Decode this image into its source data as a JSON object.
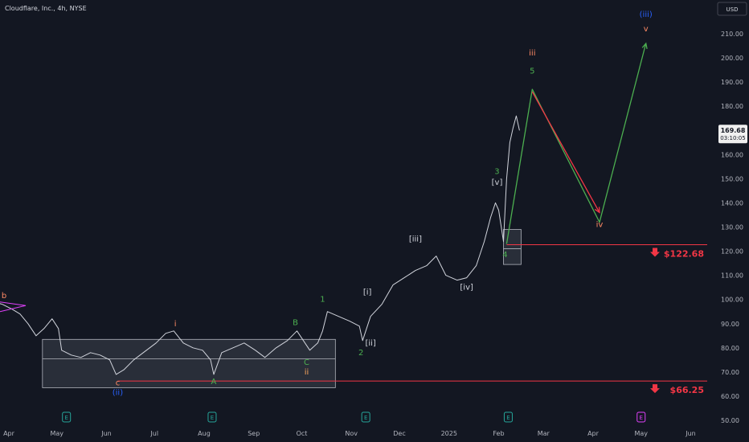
{
  "header": {
    "title": "Cloudflare, Inc., 4h, NYSE",
    "currency": "USD"
  },
  "chart_data": {
    "type": "line",
    "grid": false,
    "ylim": [
      50,
      220
    ],
    "y_ticks": [
      50,
      60,
      70,
      80,
      90,
      100,
      110,
      120,
      130,
      140,
      150,
      160,
      170,
      180,
      190,
      200,
      210
    ],
    "x_ticks": [
      {
        "label": "Apr",
        "x": "2024-04-01"
      },
      {
        "label": "May",
        "x": "2024-05-01"
      },
      {
        "label": "Jun",
        "x": "2024-06-01"
      },
      {
        "label": "Jul",
        "x": "2024-07-01"
      },
      {
        "label": "Aug",
        "x": "2024-08-01"
      },
      {
        "label": "Sep",
        "x": "2024-09-01"
      },
      {
        "label": "Oct",
        "x": "2024-10-01"
      },
      {
        "label": "Nov",
        "x": "2024-11-01"
      },
      {
        "label": "Dec",
        "x": "2024-12-01"
      },
      {
        "label": "2025",
        "x": "2025-01-01"
      },
      {
        "label": "Feb",
        "x": "2025-02-01"
      },
      {
        "label": "Mar",
        "x": "2025-03-01"
      },
      {
        "label": "Apr",
        "x": "2025-04-01"
      },
      {
        "label": "May",
        "x": "2025-05-01"
      },
      {
        "label": "Jun",
        "x": "2025-06-01"
      }
    ],
    "series": [
      {
        "color": "#d1d4dc",
        "points": [
          [
            "2024-03-23",
            99
          ],
          [
            "2024-03-28",
            98
          ],
          [
            "2024-04-03",
            96
          ],
          [
            "2024-04-08",
            94
          ],
          [
            "2024-04-13",
            90
          ],
          [
            "2024-04-18",
            85
          ],
          [
            "2024-04-23",
            88
          ],
          [
            "2024-04-28",
            92
          ],
          [
            "2024-05-02",
            88
          ],
          [
            "2024-05-04",
            79
          ],
          [
            "2024-05-10",
            77
          ],
          [
            "2024-05-16",
            76
          ],
          [
            "2024-05-22",
            78
          ],
          [
            "2024-05-28",
            77
          ],
          [
            "2024-06-03",
            75
          ],
          [
            "2024-06-07",
            69
          ],
          [
            "2024-06-12",
            71
          ],
          [
            "2024-06-18",
            75
          ],
          [
            "2024-06-24",
            78
          ],
          [
            "2024-07-02",
            82
          ],
          [
            "2024-07-08",
            86
          ],
          [
            "2024-07-13",
            87
          ],
          [
            "2024-07-19",
            82
          ],
          [
            "2024-07-25",
            80
          ],
          [
            "2024-07-31",
            79
          ],
          [
            "2024-08-05",
            75
          ],
          [
            "2024-08-07",
            69
          ],
          [
            "2024-08-12",
            78
          ],
          [
            "2024-08-19",
            80
          ],
          [
            "2024-08-26",
            82
          ],
          [
            "2024-09-02",
            79
          ],
          [
            "2024-09-08",
            76
          ],
          [
            "2024-09-15",
            80
          ],
          [
            "2024-09-22",
            83
          ],
          [
            "2024-09-28",
            87
          ],
          [
            "2024-10-02",
            83
          ],
          [
            "2024-10-06",
            79
          ],
          [
            "2024-10-11",
            82
          ],
          [
            "2024-10-14",
            87
          ],
          [
            "2024-10-17",
            95
          ],
          [
            "2024-10-24",
            93
          ],
          [
            "2024-10-31",
            91
          ],
          [
            "2024-11-06",
            89
          ],
          [
            "2024-11-08",
            83
          ],
          [
            "2024-11-13",
            93
          ],
          [
            "2024-11-20",
            98
          ],
          [
            "2024-11-27",
            106
          ],
          [
            "2024-12-04",
            109
          ],
          [
            "2024-12-11",
            112
          ],
          [
            "2024-12-18",
            114
          ],
          [
            "2024-12-24",
            118
          ],
          [
            "2024-12-30",
            110
          ],
          [
            "2025-01-06",
            108
          ],
          [
            "2025-01-12",
            109
          ],
          [
            "2025-01-18",
            114
          ],
          [
            "2025-01-23",
            124
          ],
          [
            "2025-01-27",
            134
          ],
          [
            "2025-01-30",
            140
          ],
          [
            "2025-02-01",
            137
          ],
          [
            "2025-02-04",
            124
          ],
          [
            "2025-02-06",
            150
          ],
          [
            "2025-02-08",
            165
          ],
          [
            "2025-02-10",
            171
          ],
          [
            "2025-02-12",
            176
          ],
          [
            "2025-02-14",
            170
          ]
        ]
      },
      {
        "color": "#4caf50",
        "points": [
          [
            "2025-02-06",
            123
          ],
          [
            "2025-02-22",
            187
          ],
          [
            "2025-04-05",
            132
          ],
          [
            "2025-05-04",
            206
          ]
        ]
      },
      {
        "color": "#f23645",
        "points": [
          [
            "2025-02-22",
            186
          ],
          [
            "2025-04-05",
            136
          ]
        ]
      }
    ],
    "annotations": [
      {
        "text": "b",
        "x": "2024-03-29",
        "y": 100.5,
        "color": "#ff8a65"
      },
      {
        "text": "i",
        "x": "2024-07-14",
        "y": 89,
        "color": "#ff8a65"
      },
      {
        "text": "B",
        "x": "2024-09-27",
        "y": 89.5,
        "color": "#4caf50"
      },
      {
        "text": "1",
        "x": "2024-10-14",
        "y": 99,
        "color": "#4caf50"
      },
      {
        "text": "[i]",
        "x": "2024-11-11",
        "y": 102,
        "color": "#d1d4dc"
      },
      {
        "text": "[iii]",
        "x": "2024-12-11",
        "y": 124,
        "color": "#d1d4dc"
      },
      {
        "text": "[iv]",
        "x": "2025-01-12",
        "y": 104,
        "color": "#d1d4dc"
      },
      {
        "text": "[ii]",
        "x": "2024-11-13",
        "y": 81,
        "color": "#d1d4dc"
      },
      {
        "text": "2",
        "x": "2024-11-07",
        "y": 77,
        "color": "#4caf50"
      },
      {
        "text": "C",
        "x": "2024-10-04",
        "y": 73,
        "color": "#4caf50"
      },
      {
        "text": "ii",
        "x": "2024-10-04",
        "y": 69,
        "color": "#f7a35c"
      },
      {
        "text": "c",
        "x": "2024-06-08",
        "y": 64.5,
        "color": "#ff8a65"
      },
      {
        "text": "A",
        "x": "2024-08-07",
        "y": 65,
        "color": "#4caf50"
      },
      {
        "text": "(ii)",
        "x": "2024-06-08",
        "y": 60.5,
        "color": "#2962ff"
      },
      {
        "text": "3",
        "x": "2025-01-31",
        "y": 152,
        "color": "#4caf50"
      },
      {
        "text": "[v]",
        "x": "2025-01-31",
        "y": 147.5,
        "color": "#d1d4dc"
      },
      {
        "text": "4",
        "x": "2025-02-05",
        "y": 117.5,
        "color": "#4caf50"
      },
      {
        "text": "iii",
        "x": "2025-02-22",
        "y": 201,
        "color": "#ff8a65"
      },
      {
        "text": "5",
        "x": "2025-02-22",
        "y": 193.5,
        "color": "#4caf50"
      },
      {
        "text": "iv",
        "x": "2025-04-05",
        "y": 130,
        "color": "#ff8a65"
      },
      {
        "text": "(iii)",
        "x": "2025-05-04",
        "y": 217,
        "color": "#2962ff"
      },
      {
        "text": "v",
        "x": "2025-05-04",
        "y": 211,
        "color": "#ff8a65"
      }
    ],
    "horizontal_levels": [
      {
        "label": "$122.68",
        "y": 122.68,
        "x_from": "2025-02-06",
        "color": "#f23645"
      },
      {
        "label": "$66.25",
        "y": 66.25,
        "x_from": "2024-06-08",
        "color": "#f23645"
      }
    ],
    "boxes": [
      {
        "x": [
          "2024-04-22",
          "2024-10-22"
        ],
        "y": [
          63.5,
          83.5
        ],
        "midline": 75.5
      },
      {
        "x": [
          "2025-02-04",
          "2025-02-15"
        ],
        "y": [
          114.5,
          129
        ],
        "midline": 121
      }
    ],
    "events": [
      {
        "label": "E",
        "x": "2024-05-07",
        "color": "#26a69a"
      },
      {
        "label": "E",
        "x": "2024-08-06",
        "color": "#26a69a"
      },
      {
        "label": "E",
        "x": "2024-11-10",
        "color": "#26a69a"
      },
      {
        "label": "E",
        "x": "2025-02-07",
        "color": "#26a69a"
      },
      {
        "label": "E",
        "x": "2025-05-01",
        "color": "#e040fb"
      }
    ],
    "last_price": {
      "value": "169.68",
      "countdown": "03:10:05",
      "y": 169.68
    }
  }
}
